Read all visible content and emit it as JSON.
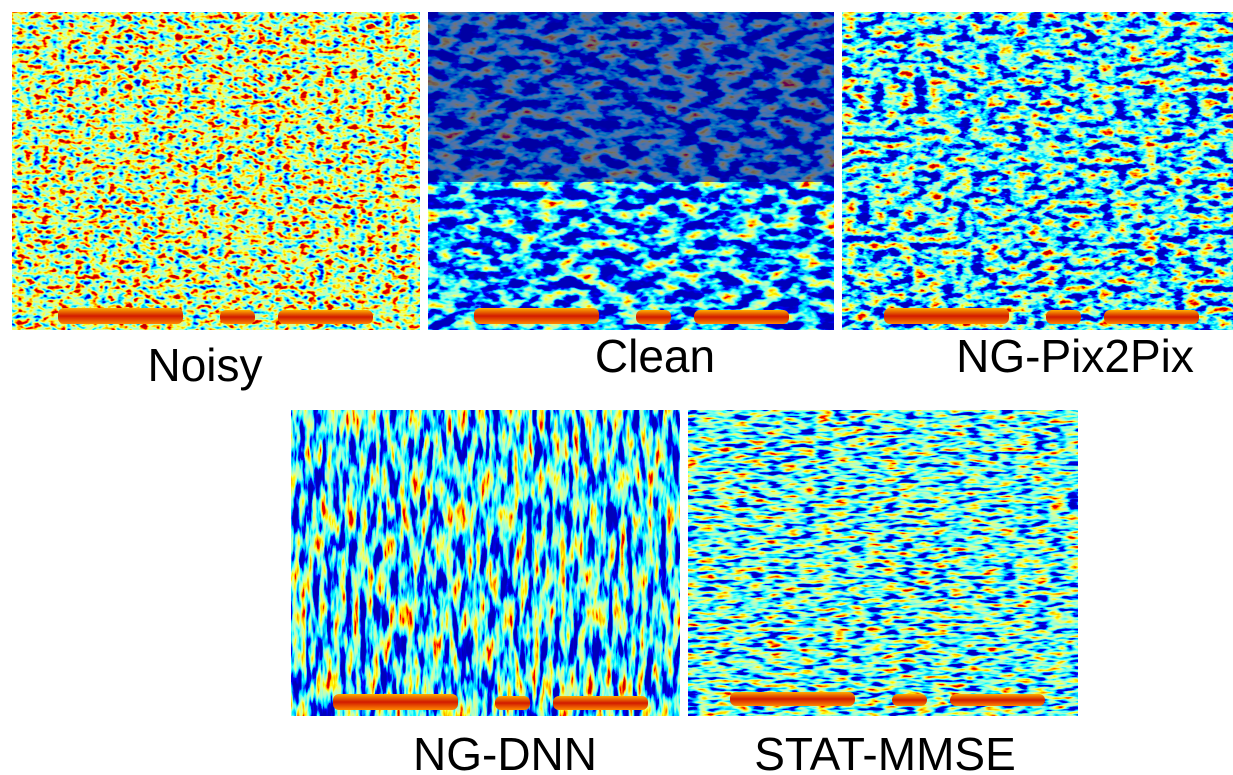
{
  "panels": [
    {
      "label": "Noisy"
    },
    {
      "label": "Clean"
    },
    {
      "label": "NG-Pix2Pix"
    },
    {
      "label": "NG-DNN"
    },
    {
      "label": "STAT-MMSE"
    }
  ]
}
